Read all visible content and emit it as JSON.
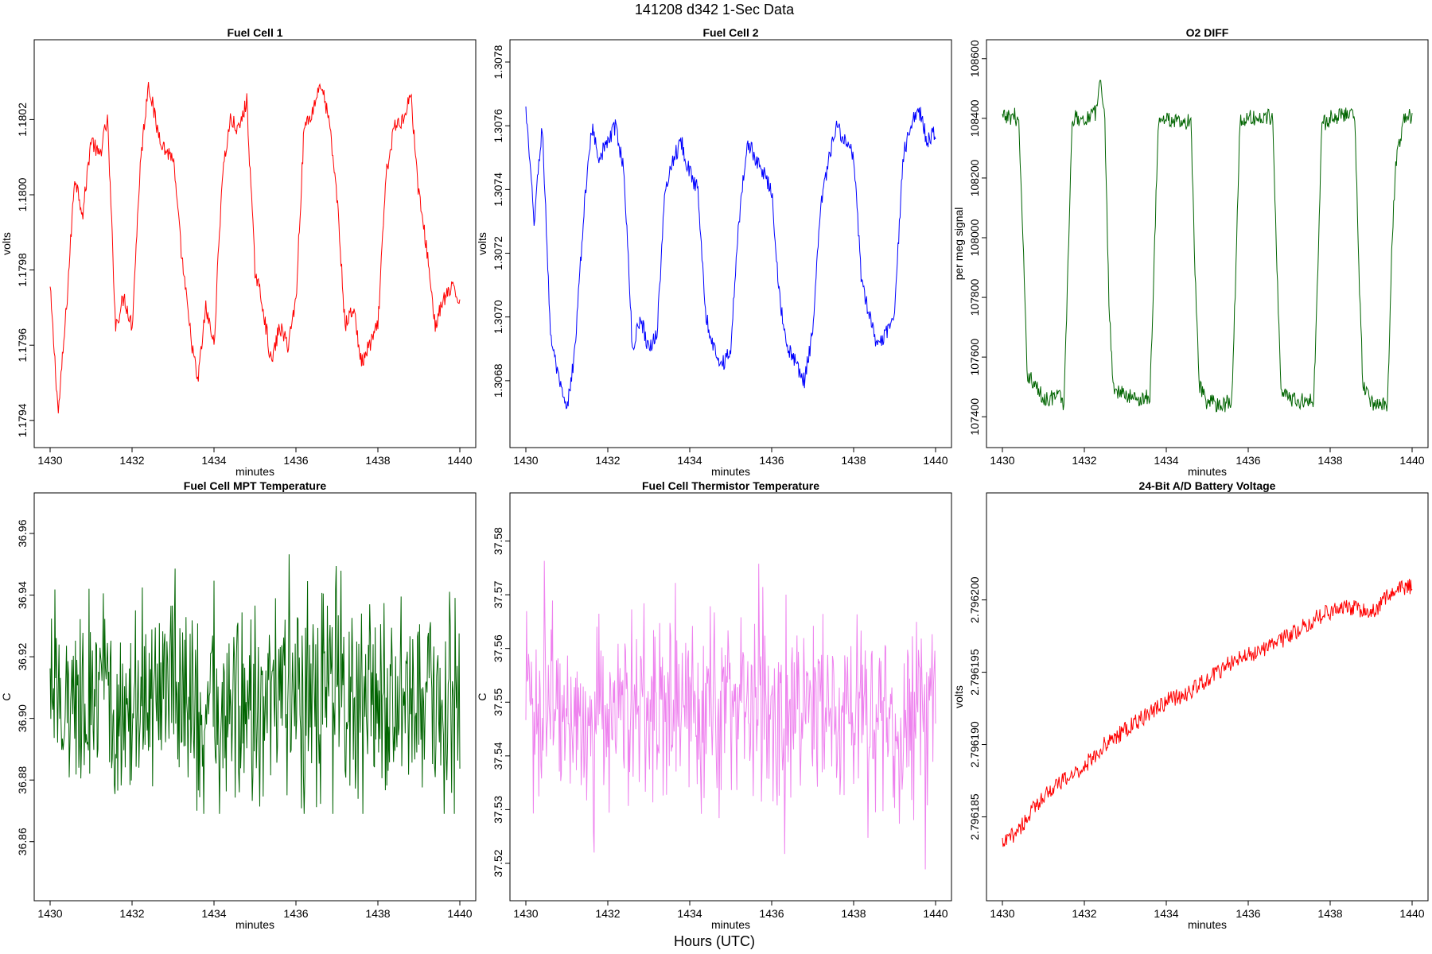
{
  "figure": {
    "title": "141208   d342   1-Sec Data",
    "xlabel": "Hours (UTC)"
  },
  "chart_data": [
    {
      "type": "line",
      "title": "Fuel Cell 1",
      "xlabel": "minutes",
      "ylabel": "volts",
      "color": "#ff0000",
      "xlim": [
        1430,
        1440
      ],
      "ylim": [
        1.17937,
        1.18037
      ],
      "xticks": [
        "1430",
        "1432",
        "1434",
        "1436",
        "1438",
        "1440"
      ],
      "yticks": [
        "1.1794",
        "1.1796",
        "1.1798",
        "1.1800",
        "1.1802"
      ],
      "series": [
        {
          "x": [
            1430.0,
            1430.2,
            1430.4,
            1430.6,
            1430.8,
            1431.0,
            1431.2,
            1431.4,
            1431.6,
            1431.8,
            1432.0,
            1432.2,
            1432.4,
            1432.6,
            1432.8,
            1433.0,
            1433.2,
            1433.4,
            1433.6,
            1433.8,
            1434.0,
            1434.2,
            1434.4,
            1434.6,
            1434.8,
            1435.0,
            1435.2,
            1435.4,
            1435.6,
            1435.8,
            1436.0,
            1436.2,
            1436.4,
            1436.6,
            1436.8,
            1437.0,
            1437.2,
            1437.4,
            1437.6,
            1437.8,
            1438.0,
            1438.2,
            1438.4,
            1438.6,
            1438.8,
            1439.0,
            1439.2,
            1439.4,
            1439.6,
            1439.8,
            1440.0
          ],
          "values": [
            1.17975,
            1.17942,
            1.1797,
            1.18005,
            1.17995,
            1.18015,
            1.1801,
            1.1802,
            1.17965,
            1.17973,
            1.17965,
            1.18008,
            1.1803,
            1.18018,
            1.18012,
            1.1801,
            1.17985,
            1.17965,
            1.1795,
            1.1797,
            1.1796,
            1.18005,
            1.1802,
            1.18017,
            1.18025,
            1.1798,
            1.1797,
            1.17955,
            1.17965,
            1.1796,
            1.17972,
            1.18018,
            1.18022,
            1.1803,
            1.1802,
            1.18,
            1.17965,
            1.1797,
            1.17955,
            1.1796,
            1.17965,
            1.18005,
            1.18018,
            1.1802,
            1.18027,
            1.18,
            1.17985,
            1.17965,
            1.17972,
            1.17975,
            1.17972
          ]
        }
      ]
    },
    {
      "type": "line",
      "title": "Fuel Cell 2",
      "xlabel": "minutes",
      "ylabel": "volts",
      "color": "#0000ff",
      "xlim": [
        1430,
        1440
      ],
      "ylim": [
        1.30664,
        1.30782
      ],
      "xticks": [
        "1430",
        "1432",
        "1434",
        "1436",
        "1438",
        "1440"
      ],
      "yticks": [
        "1.3068",
        "1.3070",
        "1.3072",
        "1.3074",
        "1.3076",
        "1.3078"
      ],
      "series": [
        {
          "x": [
            1430.0,
            1430.2,
            1430.4,
            1430.6,
            1430.8,
            1431.0,
            1431.2,
            1431.4,
            1431.6,
            1431.8,
            1432.0,
            1432.2,
            1432.4,
            1432.6,
            1432.8,
            1433.0,
            1433.2,
            1433.4,
            1433.6,
            1433.8,
            1434.0,
            1434.2,
            1434.4,
            1434.6,
            1434.8,
            1435.0,
            1435.2,
            1435.4,
            1435.6,
            1435.8,
            1436.0,
            1436.2,
            1436.4,
            1436.6,
            1436.8,
            1437.0,
            1437.2,
            1437.4,
            1437.6,
            1437.8,
            1438.0,
            1438.2,
            1438.4,
            1438.6,
            1438.8,
            1439.0,
            1439.2,
            1439.4,
            1439.6,
            1439.8,
            1440.0
          ],
          "values": [
            1.30765,
            1.3073,
            1.3076,
            1.30695,
            1.3068,
            1.3067,
            1.3069,
            1.3073,
            1.3076,
            1.3075,
            1.30755,
            1.3076,
            1.30745,
            1.3069,
            1.307,
            1.3069,
            1.30695,
            1.3074,
            1.3075,
            1.30755,
            1.30745,
            1.3074,
            1.307,
            1.3069,
            1.30685,
            1.3069,
            1.3073,
            1.30755,
            1.3075,
            1.30745,
            1.3074,
            1.30705,
            1.3069,
            1.30685,
            1.3068,
            1.30695,
            1.30735,
            1.3075,
            1.3076,
            1.30755,
            1.3075,
            1.3071,
            1.307,
            1.3069,
            1.30695,
            1.307,
            1.3075,
            1.3076,
            1.30765,
            1.30755,
            1.30758
          ]
        }
      ]
    },
    {
      "type": "line",
      "title": "O2 DIFF",
      "xlabel": "minutes",
      "ylabel": "per meg signal",
      "color": "#006400",
      "xlim": [
        1430,
        1440
      ],
      "ylim": [
        107350,
        108610
      ],
      "xticks": [
        "1430",
        "1432",
        "1434",
        "1436",
        "1438",
        "1440"
      ],
      "yticks": [
        "107400",
        "107600",
        "107800",
        "108000",
        "108200",
        "108400",
        "108600"
      ],
      "series": [
        {
          "x": [
            1430.0,
            1430.3,
            1430.4,
            1430.5,
            1430.6,
            1431.0,
            1431.4,
            1431.5,
            1431.6,
            1431.7,
            1432.0,
            1432.3,
            1432.4,
            1432.5,
            1432.6,
            1432.7,
            1433.0,
            1433.4,
            1433.6,
            1433.7,
            1433.8,
            1434.0,
            1434.4,
            1434.6,
            1434.7,
            1434.8,
            1435.0,
            1435.4,
            1435.6,
            1435.7,
            1435.8,
            1436.0,
            1436.4,
            1436.6,
            1436.7,
            1436.8,
            1437.0,
            1437.4,
            1437.6,
            1437.7,
            1437.8,
            1438.0,
            1438.4,
            1438.6,
            1438.7,
            1438.8,
            1439.0,
            1439.4,
            1439.5,
            1439.6,
            1439.8,
            1440.0
          ],
          "values": [
            108400,
            108410,
            108380,
            108000,
            107550,
            107460,
            107470,
            107440,
            107900,
            108400,
            108400,
            108420,
            108550,
            108380,
            107800,
            107500,
            107470,
            107460,
            107470,
            107900,
            108380,
            108400,
            108380,
            108390,
            107900,
            107500,
            107450,
            107440,
            107460,
            107900,
            108390,
            108400,
            108400,
            108410,
            107900,
            107500,
            107460,
            107450,
            107460,
            107900,
            108380,
            108400,
            108420,
            108410,
            107900,
            107500,
            107450,
            107440,
            107950,
            108250,
            108390,
            108410
          ]
        }
      ]
    },
    {
      "type": "line",
      "title": "Fuel Cell MPT Temperature",
      "xlabel": "minutes",
      "ylabel": "C",
      "color": "#006400",
      "xlim": [
        1430,
        1440
      ],
      "ylim": [
        36.846,
        36.968
      ],
      "xticks": [
        "1430",
        "1432",
        "1434",
        "1436",
        "1438",
        "1440"
      ],
      "yticks": [
        "36.86",
        "36.88",
        "36.90",
        "36.92",
        "36.94",
        "36.96"
      ],
      "noise": {
        "center": 36.906,
        "spread": 0.024,
        "min": 36.869,
        "max": 36.964
      }
    },
    {
      "type": "line",
      "title": "Fuel Cell Thermistor Temperature",
      "xlabel": "minutes",
      "ylabel": "C",
      "color": "#ee82ee",
      "xlim": [
        1430,
        1440
      ],
      "ylim": [
        37.516,
        37.586
      ],
      "xticks": [
        "1430",
        "1432",
        "1434",
        "1436",
        "1438",
        "1440"
      ],
      "yticks": [
        "37.52",
        "37.53",
        "37.54",
        "37.55",
        "37.56",
        "37.57",
        "37.58"
      ],
      "noise": {
        "center": 37.549,
        "spread": 0.012,
        "min": 37.518,
        "max": 37.583
      }
    },
    {
      "type": "line",
      "title": "24-Bit A/D Battery Voltage",
      "xlabel": "minutes",
      "ylabel": "volts",
      "color": "#ff0000",
      "xlim": [
        1430,
        1440
      ],
      "ylim": [
        2.7961803,
        2.7962063
      ],
      "xticks": [
        "1430",
        "1432",
        "1434",
        "1436",
        "1438",
        "1440"
      ],
      "yticks": [
        "2.796185",
        "2.796190",
        "2.796195",
        "2.796200"
      ],
      "series": [
        {
          "x": [
            1430.0,
            1430.5,
            1431.0,
            1431.5,
            1432.0,
            1432.5,
            1433.0,
            1433.5,
            1434.0,
            1434.5,
            1435.0,
            1435.5,
            1436.0,
            1436.5,
            1437.0,
            1437.5,
            1438.0,
            1438.5,
            1439.0,
            1439.5,
            1440.0
          ],
          "values": [
            2.796183,
            2.7961845,
            2.7961865,
            2.7961875,
            2.7961885,
            2.79619,
            2.796191,
            2.796192,
            2.796193,
            2.7961935,
            2.7961945,
            2.7961955,
            2.7961962,
            2.7961968,
            2.7961975,
            2.7961985,
            2.7961992,
            2.7961995,
            2.796199,
            2.7962005,
            2.796201
          ]
        }
      ]
    }
  ]
}
